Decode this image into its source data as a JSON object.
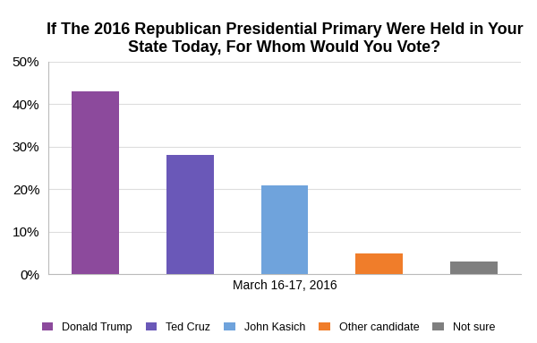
{
  "chart_data": {
    "type": "bar",
    "title": "If The 2016 Republican Presidential Primary Were Held in Your State Today, For Whom Would You Vote?",
    "xlabel": "March 16-17, 2016",
    "categories": [
      "Donald Trump",
      "Ted Cruz",
      "John Kasich",
      "Other candidate",
      "Not sure"
    ],
    "values": [
      43,
      28,
      21,
      5,
      3
    ],
    "colors": [
      "#8c4a9c",
      "#6a58b8",
      "#6fa3dc",
      "#f07d2a",
      "#7f7f7f"
    ],
    "ylim": [
      0,
      50
    ],
    "yticks": [
      {
        "value": 0,
        "label": "0%"
      },
      {
        "value": 10,
        "label": "10%"
      },
      {
        "value": 20,
        "label": "20%"
      },
      {
        "value": 30,
        "label": "30%"
      },
      {
        "value": 40,
        "label": "40%"
      },
      {
        "value": 50,
        "label": "50%"
      }
    ],
    "grid": true,
    "legend": "lower center",
    "tick_labels": "y"
  }
}
